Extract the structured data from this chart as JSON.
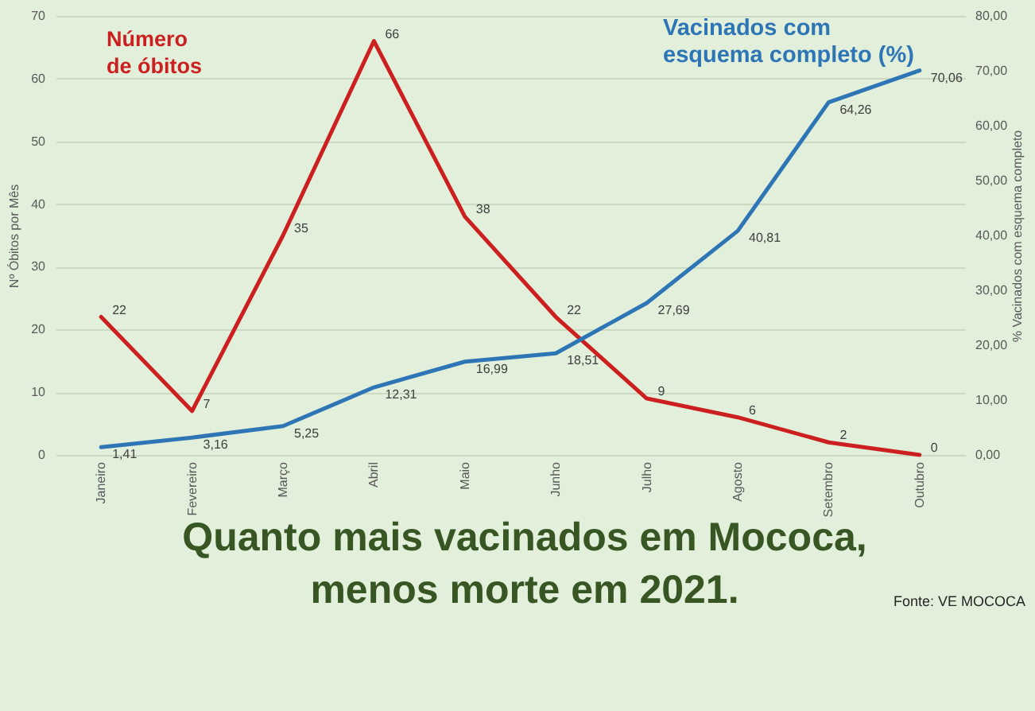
{
  "chart_data": {
    "type": "line",
    "title": "Quanto mais vacinados em Mococa, menos morte em 2021.",
    "ylabel": "Nº Óbitos por Mês",
    "y2label": "% Vacinados com esquema completo",
    "categories": [
      "Janeiro",
      "Fevereiro",
      "Março",
      "Abril",
      "Maio",
      "Junho",
      "Julho",
      "Agosto",
      "Setembro",
      "Outubro"
    ],
    "series": [
      {
        "name": "Número de óbitos",
        "color": "#cc1f1f",
        "values": [
          22,
          7,
          35,
          66,
          38,
          22,
          9,
          6,
          2,
          0
        ],
        "value_labels": [
          "22",
          "7",
          "35",
          "66",
          "38",
          "22",
          "9",
          "6",
          "2",
          "0"
        ]
      },
      {
        "name": "Vacinados com esquema completo (%)",
        "color": "#2e75b6",
        "axis": "y2",
        "values": [
          1.41,
          3.16,
          5.25,
          12.31,
          16.99,
          18.51,
          27.69,
          40.81,
          64.26,
          70.06
        ],
        "value_labels": [
          "1,41",
          "3,16",
          "5,25",
          "12,31",
          "16,99",
          "18,51",
          "27,69",
          "40,81",
          "64,26",
          "70,06"
        ]
      }
    ],
    "ylim": [
      0,
      70
    ],
    "yticks": [
      0,
      10,
      20,
      30,
      40,
      50,
      60,
      70
    ],
    "y2lim": [
      0,
      80
    ],
    "y2ticks": [
      {
        "value": 0,
        "label": "0,00"
      },
      {
        "value": 10,
        "label": "10,00"
      },
      {
        "value": 20,
        "label": "20,00"
      },
      {
        "value": 30,
        "label": "30,00"
      },
      {
        "value": 40,
        "label": "40,00"
      },
      {
        "value": 50,
        "label": "50,00"
      },
      {
        "value": 60,
        "label": "60,00"
      },
      {
        "value": 70,
        "label": "70,00"
      },
      {
        "value": 80,
        "label": "80,00"
      }
    ],
    "grid": "y",
    "annotations": [
      "Fonte: VE MOCOCA"
    ]
  }
}
